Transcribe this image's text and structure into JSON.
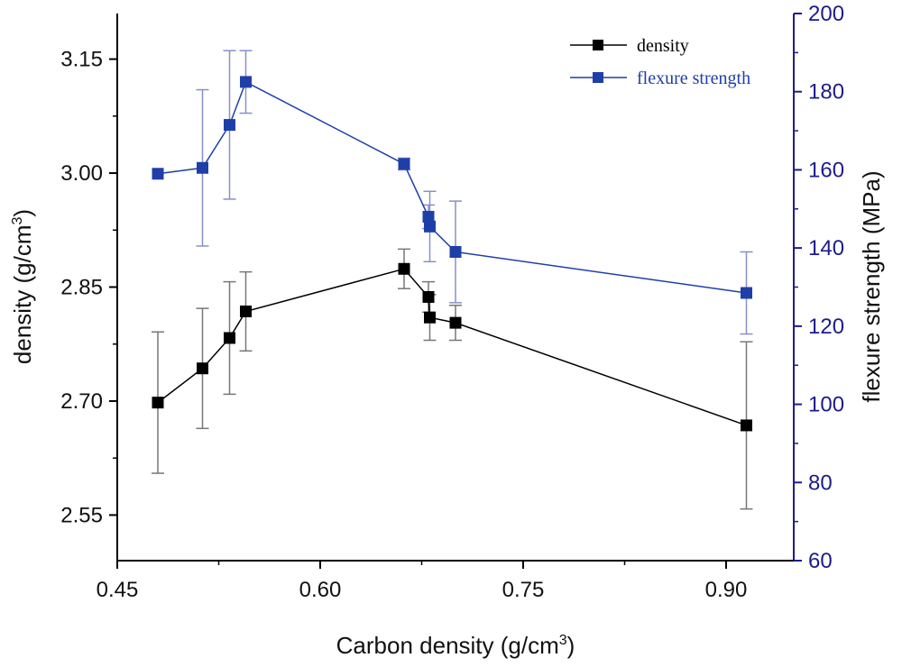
{
  "chart_data": {
    "type": "scatter",
    "xlabel": "Carbon density (g/cm",
    "xlabel_sup": "3",
    "xlabel_tail": ")",
    "ylabel_left": "density (g/cm",
    "ylabel_left_sup": "3",
    "ylabel_left_tail": ")",
    "ylabel_right": "flexure strength (MPa)",
    "xlim": [
      0.45,
      0.95
    ],
    "ylim_left": [
      2.49,
      3.21
    ],
    "ylim_right": [
      60,
      200
    ],
    "x_ticks": [
      "0.45",
      "0.60",
      "0.75",
      "0.90"
    ],
    "x_tick_values": [
      0.45,
      0.6,
      0.75,
      0.9
    ],
    "y_left_ticks": [
      "2.55",
      "2.70",
      "2.85",
      "3.00",
      "3.15"
    ],
    "y_left_tick_values": [
      2.55,
      2.7,
      2.85,
      3.0,
      3.15
    ],
    "y_right_ticks": [
      "60",
      "80",
      "100",
      "120",
      "140",
      "160",
      "180",
      "200"
    ],
    "y_right_tick_values": [
      60,
      80,
      100,
      120,
      140,
      160,
      180,
      200
    ],
    "legend_position": "top-right",
    "series": [
      {
        "name": "density",
        "axis": "left",
        "color": "#000000",
        "x": [
          0.48,
          0.513,
          0.533,
          0.545,
          0.662,
          0.68,
          0.681,
          0.7,
          0.915
        ],
        "y": [
          2.698,
          2.743,
          2.783,
          2.818,
          2.874,
          2.837,
          2.81,
          2.803,
          2.668
        ],
        "err": [
          0.093,
          0.079,
          0.074,
          0.052,
          0.026,
          0.02,
          0.03,
          0.023,
          0.11
        ]
      },
      {
        "name": "flexure strength",
        "axis": "right",
        "color": "#1f3fa8",
        "x": [
          0.48,
          0.513,
          0.533,
          0.545,
          0.662,
          0.68,
          0.681,
          0.7,
          0.915
        ],
        "y": [
          159.0,
          160.5,
          171.5,
          182.5,
          161.5,
          148.0,
          145.5,
          139.0,
          128.5
        ],
        "err": [
          0.0,
          20.0,
          19.0,
          8.0,
          1.5,
          3.0,
          9.0,
          13.0,
          10.5
        ]
      }
    ]
  }
}
